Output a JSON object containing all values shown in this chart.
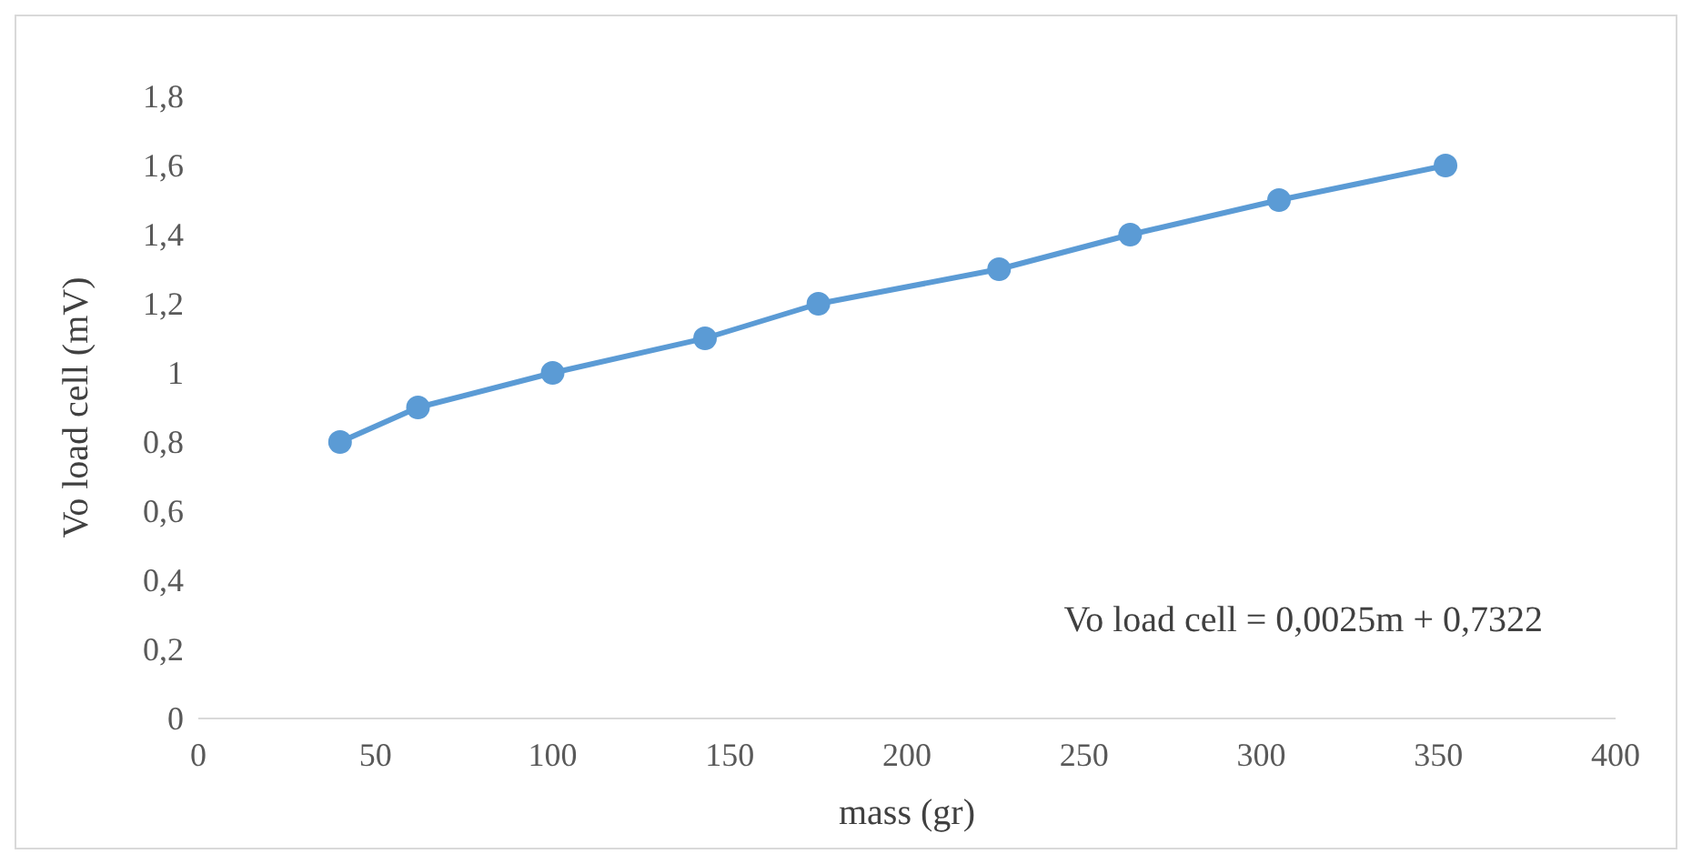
{
  "chart_data": {
    "type": "line",
    "xlabel": "mass (gr)",
    "ylabel": "Vo load cell (mV)",
    "x": [
      40,
      62,
      100,
      143,
      175,
      226,
      263,
      305,
      352
    ],
    "series": [
      {
        "color": "#5b9bd5",
        "values": [
          0.8,
          0.9,
          1.0,
          1.1,
          1.2,
          1.3,
          1.4,
          1.5,
          1.6
        ]
      }
    ],
    "xlim": [
      0,
      400
    ],
    "xticks": [
      0,
      50,
      100,
      150,
      200,
      250,
      300,
      350,
      400
    ],
    "ylim": [
      0,
      1.8
    ],
    "yticks": [
      {
        "value": 0,
        "label": "0"
      },
      {
        "value": 0.2,
        "label": "0,2"
      },
      {
        "value": 0.4,
        "label": "0,4"
      },
      {
        "value": 0.6,
        "label": "0,6"
      },
      {
        "value": 0.8,
        "label": "0,8"
      },
      {
        "value": 1,
        "label": "1"
      },
      {
        "value": 1.2,
        "label": "1,2"
      },
      {
        "value": 1.4,
        "label": "1,4"
      },
      {
        "value": 1.6,
        "label": "1,6"
      },
      {
        "value": 1.8,
        "label": "1,8"
      }
    ],
    "annotations": [
      "Vo load cell = 0,0025m + 0,7322"
    ],
    "marker": "circle",
    "grid": false
  }
}
